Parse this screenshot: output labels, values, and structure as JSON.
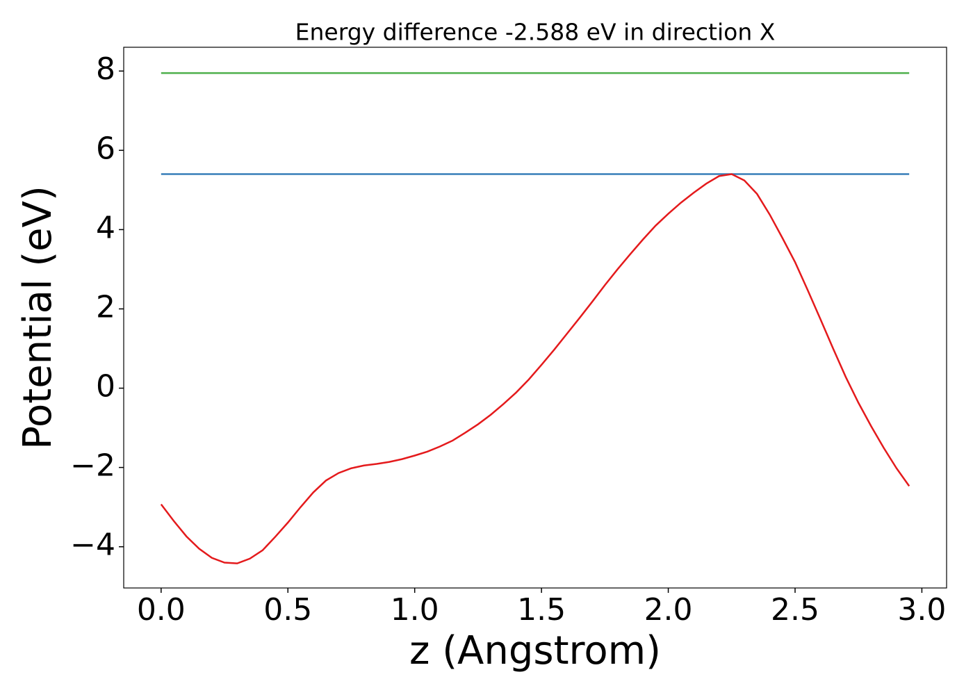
{
  "chart_data": {
    "type": "line",
    "title": "Energy difference -2.588 eV in direction X",
    "xlabel": "z (Angstrom)",
    "ylabel": "Potential (eV)",
    "xlim": [
      -0.1475,
      3.0975
    ],
    "ylim": [
      -5.04,
      8.6
    ],
    "xticks": [
      {
        "value": 0,
        "label": "0.0"
      },
      0.5,
      {
        "value": 1,
        "label": "1.0"
      },
      1.5,
      {
        "value": 2,
        "label": "2.0"
      },
      2.5,
      {
        "value": 3,
        "label": "3.0"
      }
    ],
    "yticks": [
      {
        "value": -4,
        "label": "−4"
      },
      {
        "value": -2,
        "label": "−2"
      },
      0,
      2,
      4,
      6,
      8
    ],
    "grid": false,
    "series": [
      {
        "color": "#4daf4a",
        "x": [
          0,
          2.95
        ],
        "values": [
          7.95,
          7.95
        ]
      },
      {
        "color": "#377eb8",
        "x": [
          0,
          2.95
        ],
        "values": [
          5.4,
          5.4
        ]
      },
      {
        "color": "#e41a1c",
        "x": [
          0,
          0.05,
          0.1,
          0.15,
          0.2,
          0.25,
          0.3,
          0.35,
          0.4,
          0.45,
          0.5,
          0.55,
          0.6,
          0.65,
          0.7,
          0.75,
          0.8,
          0.85,
          0.9,
          0.95,
          1.0,
          1.05,
          1.1,
          1.15,
          1.2,
          1.25,
          1.3,
          1.35,
          1.4,
          1.45,
          1.5,
          1.55,
          1.6,
          1.65,
          1.7,
          1.75,
          1.8,
          1.85,
          1.9,
          1.95,
          2.0,
          2.05,
          2.1,
          2.15,
          2.2,
          2.25,
          2.3,
          2.35,
          2.4,
          2.45,
          2.5,
          2.55,
          2.6,
          2.65,
          2.7,
          2.75,
          2.8,
          2.85,
          2.9,
          2.95
        ],
        "values": [
          -2.93,
          -3.35,
          -3.74,
          -4.05,
          -4.28,
          -4.4,
          -4.42,
          -4.3,
          -4.09,
          -3.75,
          -3.39,
          -3.0,
          -2.63,
          -2.33,
          -2.14,
          -2.02,
          -1.95,
          -1.91,
          -1.86,
          -1.79,
          -1.7,
          -1.6,
          -1.47,
          -1.32,
          -1.12,
          -0.91,
          -0.67,
          -0.4,
          -0.11,
          0.22,
          0.59,
          0.97,
          1.37,
          1.77,
          2.18,
          2.6,
          3.0,
          3.38,
          3.75,
          4.1,
          4.4,
          4.68,
          4.93,
          5.16,
          5.35,
          5.4,
          5.24,
          4.9,
          4.38,
          3.79,
          3.18,
          2.47,
          1.74,
          1.0,
          0.28,
          -0.37,
          -0.96,
          -1.51,
          -2.02,
          -2.47
        ]
      }
    ]
  }
}
